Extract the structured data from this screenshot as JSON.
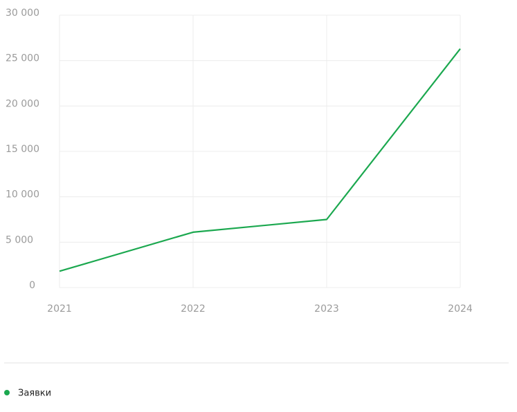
{
  "chart_data": {
    "type": "line",
    "categories": [
      "2021",
      "2022",
      "2023",
      "2024"
    ],
    "series": [
      {
        "name": "Заявки",
        "color": "#1ba84f",
        "values": [
          1800,
          6100,
          7500,
          26300
        ]
      }
    ],
    "ylim": [
      0,
      30000
    ],
    "yticks": [
      0,
      {
        "value": 5000,
        "label": "5 000"
      },
      {
        "value": 10000,
        "label": "10 000"
      },
      {
        "value": 15000,
        "label": "15 000"
      },
      {
        "value": 20000,
        "label": "20 000"
      },
      {
        "value": 25000,
        "label": "25 000"
      },
      {
        "value": 30000,
        "label": "30 000"
      }
    ],
    "grid": true
  }
}
